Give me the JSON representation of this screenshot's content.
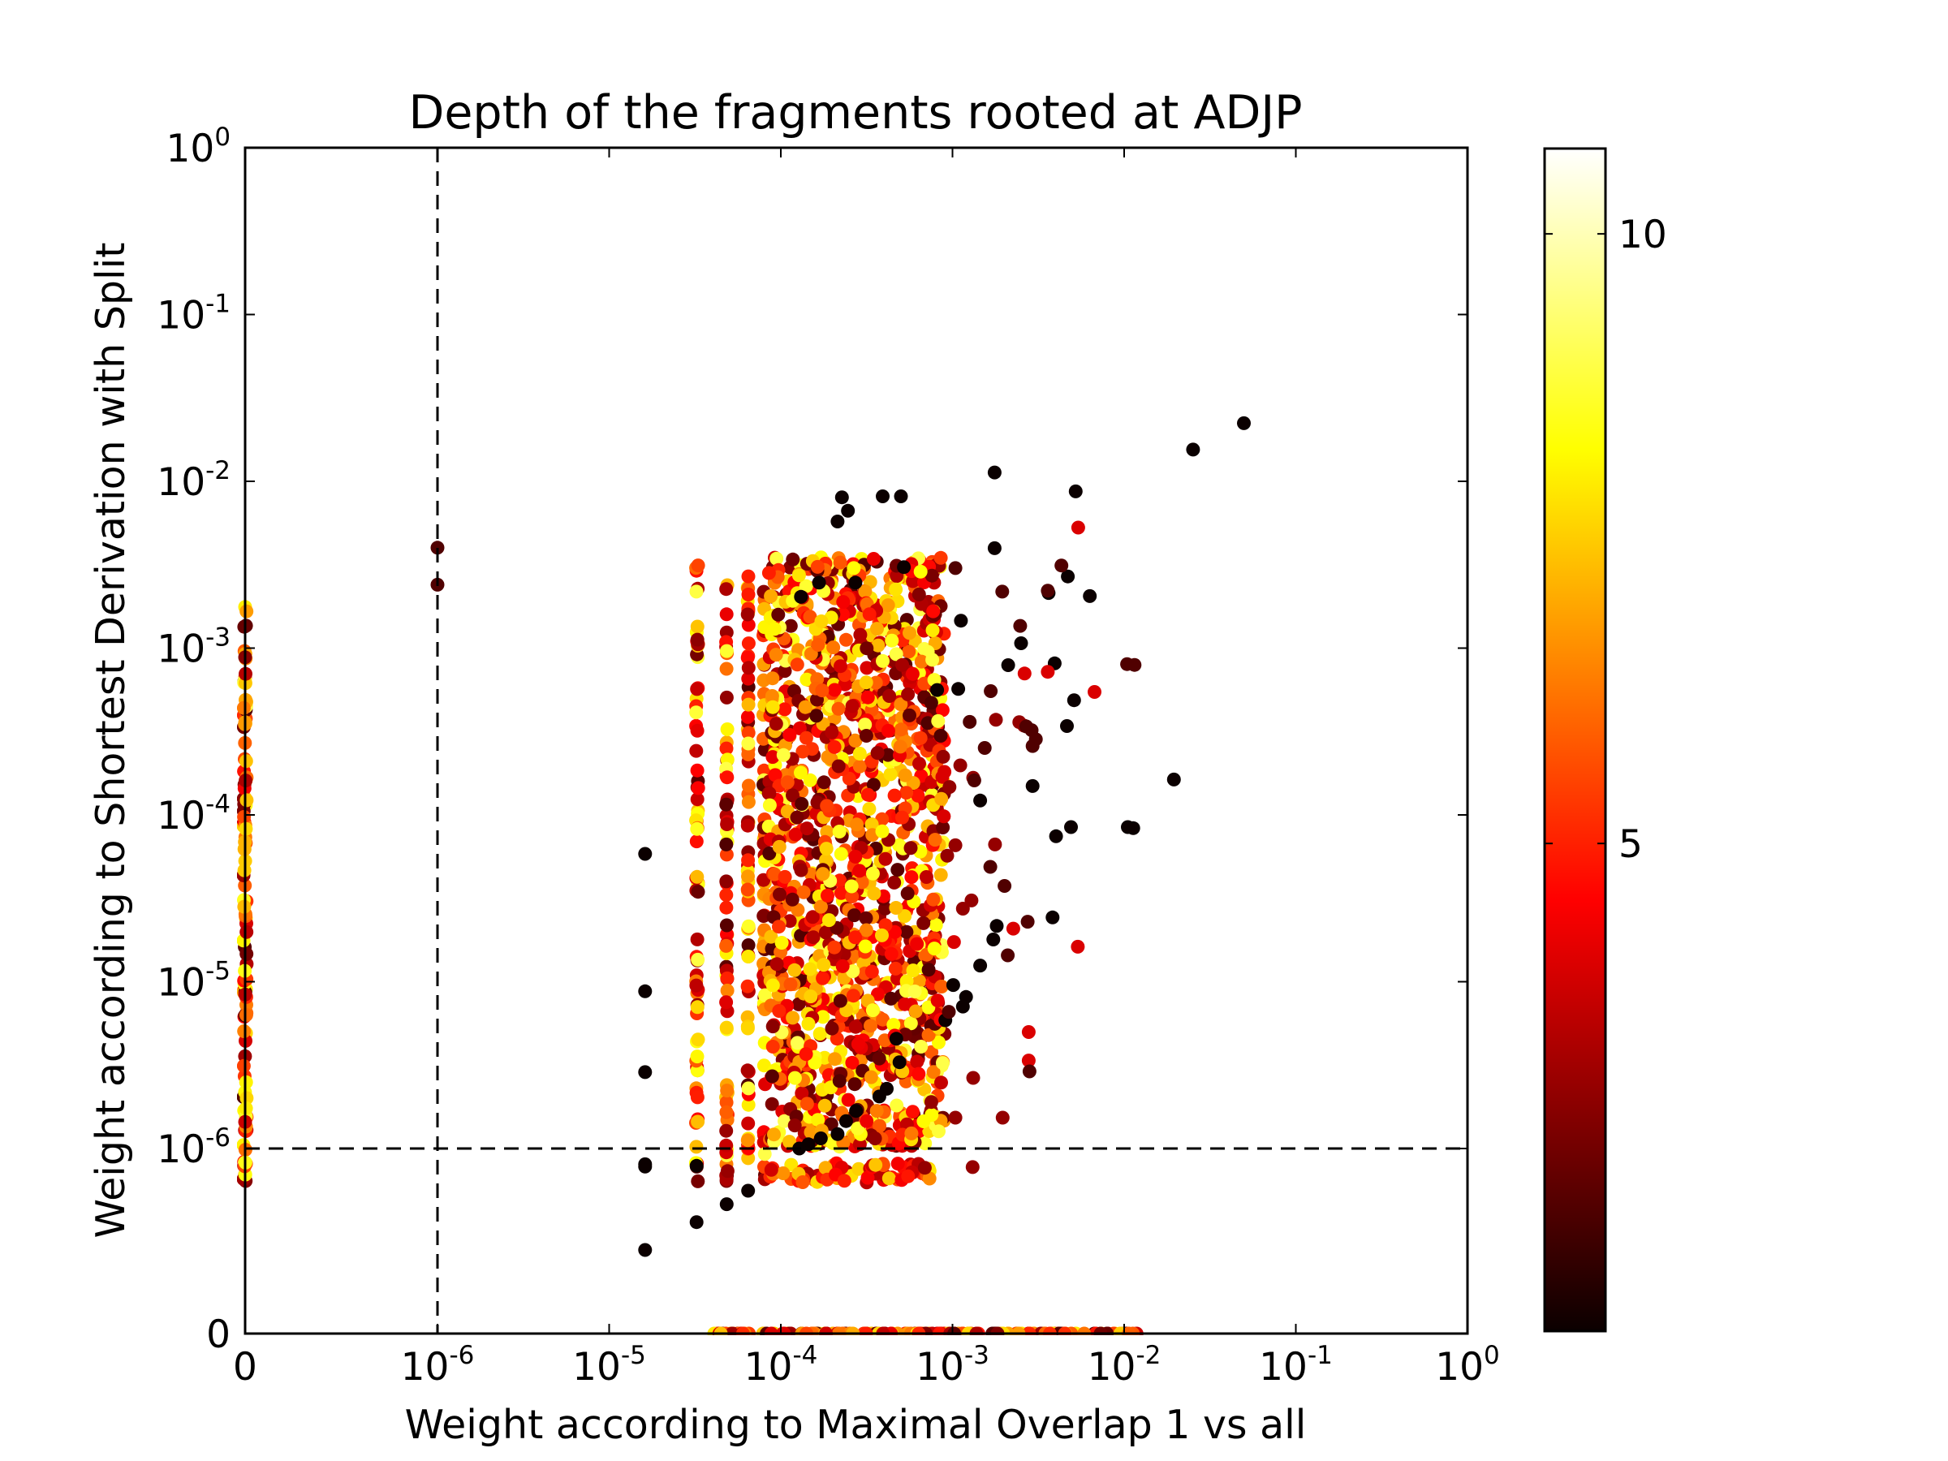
{
  "chart_data": {
    "type": "scatter",
    "title": "Depth of the fragments rooted at ADJP",
    "xlabel": "Weight according to Maximal Overlap 1 vs all",
    "ylabel": "Weight according to Shortest Derivation with Split",
    "x_scale": "symlog",
    "y_scale": "symlog",
    "x_tick_labels": [
      {
        "value": 0,
        "base": "0",
        "exp": ""
      },
      {
        "value": 1e-06,
        "base": "10",
        "exp": "-6"
      },
      {
        "value": 1e-05,
        "base": "10",
        "exp": "-5"
      },
      {
        "value": 0.0001,
        "base": "10",
        "exp": "-4"
      },
      {
        "value": 0.001,
        "base": "10",
        "exp": "-3"
      },
      {
        "value": 0.01,
        "base": "10",
        "exp": "-2"
      },
      {
        "value": 0.1,
        "base": "10",
        "exp": "-1"
      },
      {
        "value": 1,
        "base": "10",
        "exp": "0"
      }
    ],
    "y_tick_labels": [
      {
        "value": 0,
        "base": "0",
        "exp": ""
      },
      {
        "value": 1e-06,
        "base": "10",
        "exp": "-6"
      },
      {
        "value": 1e-05,
        "base": "10",
        "exp": "-5"
      },
      {
        "value": 0.0001,
        "base": "10",
        "exp": "-4"
      },
      {
        "value": 0.001,
        "base": "10",
        "exp": "-3"
      },
      {
        "value": 0.01,
        "base": "10",
        "exp": "-2"
      },
      {
        "value": 0.1,
        "base": "10",
        "exp": "-1"
      },
      {
        "value": 1,
        "base": "10",
        "exp": "0"
      }
    ],
    "xlim": [
      0,
      1
    ],
    "ylim": [
      0,
      1
    ],
    "reference_lines": {
      "x": 1e-06,
      "y": 1e-06,
      "style": "dashed"
    },
    "colorbar": {
      "colormap": "hot",
      "range": [
        1,
        10.7
      ],
      "ticks": [
        {
          "value": 5,
          "label": "5"
        },
        {
          "value": 10,
          "label": "10"
        }
      ]
    },
    "color_variable": "depth",
    "points": [
      [
        0.0498,
        0.0223,
        1
      ],
      [
        0.0252,
        0.0155,
        1
      ],
      [
        0.00522,
        0.0087,
        1
      ],
      [
        0.00176,
        0.0113,
        1
      ],
      [
        0.000392,
        0.00813,
        1
      ],
      [
        0.000501,
        0.00813,
        1
      ],
      [
        0.000227,
        0.00802,
        1
      ],
      [
        0.000246,
        0.00666,
        1
      ],
      [
        0.000214,
        0.00574,
        1
      ],
      [
        0.00176,
        0.00397,
        1
      ],
      [
        0.000521,
        0.00306,
        1
      ],
      [
        0.0047,
        0.00269,
        1
      ],
      [
        0.00631,
        0.00205,
        1
      ],
      [
        0.00363,
        0.00214,
        1
      ],
      [
        0.000272,
        0.00247,
        1
      ],
      [
        0.000167,
        0.00247,
        1
      ],
      [
        0.000131,
        0.00203,
        1
      ],
      [
        0.00112,
        0.00146,
        1
      ],
      [
        0.00251,
        0.00107,
        1
      ],
      [
        0.00211,
        0.00079,
        1
      ],
      [
        0.00394,
        0.00081,
        1
      ],
      [
        0.00108,
        0.000569,
        1
      ],
      [
        0.000814,
        0.000561,
        1
      ],
      [
        0.00511,
        0.000487,
        1
      ],
      [
        0.00464,
        0.000341,
        1
      ],
      [
        0.0195,
        0.000163,
        1
      ],
      [
        0.00293,
        0.000149,
        1
      ],
      [
        0.00145,
        0.000122,
        1
      ],
      [
        0.0113,
        8.33e-05,
        1
      ],
      [
        0.0105,
        8.45e-05,
        1
      ],
      [
        0.0049,
        8.45e-05,
        1
      ],
      [
        0.00401,
        7.45e-05,
        1
      ],
      [
        1.62e-05,
        5.84e-05,
        1
      ],
      [
        0.00383,
        2.43e-05,
        1
      ],
      [
        0.00181,
        2.16e-05,
        1
      ],
      [
        0.00173,
        1.79e-05,
        1
      ],
      [
        0.00145,
        1.25e-05,
        1
      ],
      [
        0.00101,
        9.55e-06,
        1
      ],
      [
        0.0012,
        8.1e-06,
        1
      ],
      [
        0.00115,
        7.1e-06,
        1
      ],
      [
        1.62e-05,
        8.76e-06,
        1
      ],
      [
        0.000909,
        5.87e-06,
        1
      ],
      [
        0.000471,
        4.55e-06,
        1
      ],
      [
        0.000491,
        3.29e-06,
        1
      ],
      [
        0.000414,
        2.28e-06,
        1
      ],
      [
        1.62e-05,
        2.87e-06,
        1
      ],
      [
        0.000375,
        2.05e-06,
        1
      ],
      [
        0.000274,
        1.68e-06,
        1
      ],
      [
        0.00024,
        1.46e-06,
        1
      ],
      [
        0.000214,
        1.22e-06,
        1
      ],
      [
        0.000171,
        1.15e-06,
        1
      ],
      [
        0.000145,
        1.06e-06,
        1
      ],
      [
        0.000128,
        1e-06,
        1
      ],
      [
        1.62e-05,
        6.37e-07,
        1
      ],
      [
        1.62e-05,
        6.76e-07,
        1
      ],
      [
        3.23e-05,
        6.5e-07,
        1
      ],
      [
        6.45e-05,
        3.5e-07,
        1
      ],
      [
        4.84e-05,
        2.5e-07,
        1
      ],
      [
        3.23e-05,
        1.6e-07,
        1
      ],
      [
        1.62e-05,
        8e-08,
        1
      ],
      [
        0.0054,
        0.00528,
        4
      ],
      [
        0.00263,
        0.000704,
        4
      ],
      [
        0.00359,
        0.000721,
        4
      ],
      [
        0.00672,
        0.000546,
        4
      ],
      [
        0.000898,
        0.000181,
        4
      ],
      [
        0.000873,
        0.000169,
        4
      ],
      [
        0.00089,
        9.8e-05,
        4
      ],
      [
        0.00226,
        2.08e-05,
        4
      ],
      [
        0.00102,
        1.73e-05,
        4
      ],
      [
        0.00537,
        1.62e-05,
        4
      ],
      [
        0.00278,
        4.99e-06,
        4
      ],
      [
        0.00278,
        3.37e-06,
        4
      ],
      [
        0.00261,
        0.000343,
        3
      ],
      [
        0.00179,
        0.000372,
        3
      ],
      [
        0.00111,
        0.000198,
        3
      ],
      [
        0.00245,
        0.00036,
        3
      ],
      [
        0.000882,
        0.000223,
        3
      ],
      [
        0.00132,
        0.000167,
        3
      ],
      [
        0.00096,
        0.000147,
        3
      ],
      [
        0.00104,
        6.58e-05,
        3
      ],
      [
        0.00177,
        6.65e-05,
        3
      ],
      [
        0.000932,
        5.69e-05,
        3
      ],
      [
        0.00132,
        2.65e-06,
        3
      ],
      [
        0.00196,
        1.53e-06,
        3
      ],
      [
        0.00104,
        1.53e-06,
        3
      ],
      [
        0.000753,
        1.9e-06,
        3
      ],
      [
        0.00129,
        3.07e-05,
        3
      ],
      [
        0.00115,
        2.74e-05,
        3
      ],
      [
        0.00131,
        6.3e-07,
        3
      ],
      [
        0.00069,
        6.2e-07,
        3
      ],
      [
        0.00195,
        0.00218,
        2
      ],
      [
        0.00269,
        0.000339,
        2
      ],
      [
        0.00306,
        0.000284,
        2
      ],
      [
        0.00289,
        0.000322,
        2
      ],
      [
        0.00293,
        0.000259,
        2
      ],
      [
        0.0104,
        0.000802,
        2
      ],
      [
        0.0115,
        0.000793,
        2
      ],
      [
        0.00248,
        0.00136,
        2
      ],
      [
        0.00431,
        0.00313,
        2
      ],
      [
        0.00359,
        0.00221,
        2
      ],
      [
        0.00104,
        0.00302,
        2
      ],
      [
        0.00167,
        0.000552,
        2
      ],
      [
        0.00274,
        2.29e-05,
        2
      ],
      [
        0.00281,
        2.9e-06,
        2
      ],
      [
        0.00201,
        3.75e-05,
        2
      ],
      [
        0.00166,
        4.88e-05,
        2
      ],
      [
        0.00154,
        0.000252,
        2
      ],
      [
        0.000952,
        6.6e-06,
        2
      ],
      [
        0.0021,
        1.44e-05,
        2
      ],
      [
        0.000726,
        1.18e-05,
        2
      ],
      [
        0.00134,
        0.000161,
        2
      ],
      [
        0.00126,
        0.000361,
        2
      ],
      [
        0.000753,
        0.00047,
        2
      ],
      [
        0.000854,
        0.000298,
        2
      ],
      [
        1e-06,
        0.004,
        2
      ],
      [
        1e-06,
        0.0024,
        2
      ]
    ],
    "dense_clusters": [
      {
        "x_min": 3.2e-05,
        "x_max": 3.3e-05,
        "y_min": 4.3e-07,
        "y_max": 0.0035,
        "depth_range": [
          2,
          9
        ],
        "count": 70
      },
      {
        "x_min": 4.8e-05,
        "x_max": 4.9e-05,
        "y_min": 4.3e-07,
        "y_max": 0.0027,
        "depth_range": [
          2,
          9
        ],
        "count": 70
      },
      {
        "x_min": 6.4e-05,
        "x_max": 6.5e-05,
        "y_min": 4.3e-07,
        "y_max": 0.0028,
        "depth_range": [
          2,
          9
        ],
        "count": 70
      },
      {
        "x_min": 7.9e-05,
        "x_max": 8.1e-05,
        "y_min": 4.3e-07,
        "y_max": 0.0025,
        "depth_range": [
          2,
          9
        ],
        "count": 60
      },
      {
        "x_min": 8.5e-05,
        "x_max": 0.0009,
        "y_min": 1e-06,
        "y_max": 0.0035,
        "depth_range": [
          2,
          9
        ],
        "count": 1400
      },
      {
        "x_min": 8.5e-05,
        "x_max": 0.00075,
        "y_min": 4.3e-07,
        "y_max": 7e-07,
        "depth_range": [
          3,
          8
        ],
        "count": 60
      },
      {
        "x_min": 4e-05,
        "x_max": 0.012,
        "y_min": 0,
        "y_max": 0,
        "depth_range": [
          2,
          8
        ],
        "count": 150
      },
      {
        "x_min": 0,
        "x_max": 0,
        "y_min": 4.3e-07,
        "y_max": 0.002,
        "depth_range": [
          2,
          9
        ],
        "count": 120
      }
    ]
  }
}
